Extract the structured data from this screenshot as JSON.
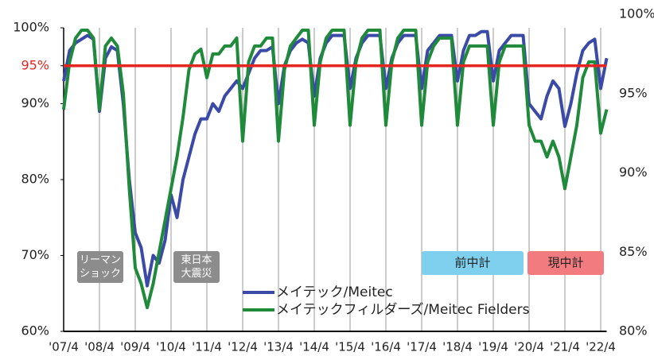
{
  "chart_data": {
    "type": "line",
    "categories": [
      "'07/4",
      null,
      null,
      null,
      null,
      null,
      "'08/4",
      null,
      null,
      null,
      null,
      null,
      "'09/4",
      null,
      null,
      null,
      null,
      null,
      "'10/4",
      null,
      null,
      null,
      null,
      null,
      "'11/4",
      null,
      null,
      null,
      null,
      null,
      "'12/4",
      null,
      null,
      null,
      null,
      null,
      "'13/4",
      null,
      null,
      null,
      null,
      null,
      "'14/4",
      null,
      null,
      null,
      null,
      null,
      "'15/4",
      null,
      null,
      null,
      null,
      null,
      "'16/4",
      null,
      null,
      null,
      null,
      null,
      "'17/4",
      null,
      null,
      null,
      null,
      null,
      "'18/4",
      null,
      null,
      null,
      null,
      null,
      "'19/4",
      null,
      null,
      null,
      null,
      null,
      "'20/4",
      null,
      null,
      null,
      null,
      null,
      "'21/4",
      null,
      null,
      null,
      null,
      null,
      "'22/4",
      null
    ],
    "series": [
      {
        "name": "メイテック/Meitec",
        "color": "#3a4aa6",
        "axis": "y",
        "values": [
          93,
          97,
          98,
          98.5,
          99,
          98.5,
          89,
          96,
          97.5,
          97,
          90,
          80,
          73,
          71,
          66,
          70,
          69,
          72,
          78,
          75,
          80,
          83,
          86,
          88,
          88,
          90,
          89,
          91,
          92,
          93,
          92,
          94,
          96,
          97,
          97,
          97.5,
          90,
          95,
          97,
          98,
          98.5,
          98,
          91,
          96,
          98,
          99,
          99,
          99,
          92,
          96,
          98,
          99,
          99,
          99,
          92,
          96,
          98,
          99,
          99,
          99,
          92,
          97,
          98,
          99,
          99,
          99,
          93,
          97,
          99,
          99,
          99.5,
          99.5,
          93,
          97,
          98,
          99,
          99,
          99,
          90,
          89,
          88,
          91,
          93,
          92,
          87,
          90,
          94,
          97,
          98,
          98.5,
          92,
          96
        ]
      },
      {
        "name": "メイテックフィルダーズ/Meitec Fielders",
        "color": "#1e8a3a",
        "axis": "y2",
        "values": [
          94,
          97,
          98.5,
          99,
          99,
          98.5,
          94,
          98,
          98.5,
          98,
          95,
          89,
          84,
          83,
          81.5,
          83,
          85,
          87,
          89,
          91,
          93.5,
          96.5,
          97.5,
          97.8,
          96,
          97.5,
          97.5,
          98,
          98,
          98.5,
          92,
          97,
          98,
          98,
          98.5,
          98.5,
          92,
          96.5,
          98,
          98.5,
          99,
          99,
          93,
          97,
          98.5,
          99,
          99,
          99,
          93,
          97,
          98.5,
          99,
          99,
          99,
          93,
          97,
          98.5,
          99,
          99,
          99,
          93,
          97,
          98,
          98.5,
          98.5,
          98.5,
          93,
          97,
          98,
          98,
          98,
          98,
          93,
          97,
          98,
          98,
          98,
          98,
          93,
          92,
          92,
          91,
          92,
          91,
          89,
          91,
          93,
          96,
          97,
          97,
          92.5,
          94
        ]
      }
    ],
    "ylim": [
      60,
      100
    ],
    "yticks": [
      {
        "value": 60,
        "label": "60%"
      },
      {
        "value": 70,
        "label": "70%"
      },
      {
        "value": 80,
        "label": "80%"
      },
      {
        "value": 90,
        "label": "90%"
      },
      {
        "value": 95,
        "label": "95%",
        "color": "#e52521"
      },
      {
        "value": 100,
        "label": "100%"
      }
    ],
    "y2lim": [
      80,
      100
    ],
    "y2ticks": [
      {
        "value": 80,
        "label": "80%"
      },
      {
        "value": 85,
        "label": "85%"
      },
      {
        "value": 90,
        "label": "90%"
      },
      {
        "value": 95,
        "label": "95%"
      },
      {
        "value": 100,
        "label": "100%"
      }
    ],
    "annotations": [
      {
        "text": [
          "リーマン",
          "ショック"
        ],
        "color": "#8c8c8c"
      },
      {
        "text": [
          "東日本",
          "大震災"
        ],
        "color": "#8c8c8c"
      },
      {
        "text": [
          "前中計"
        ],
        "color": "#7fd0ee"
      },
      {
        "text": [
          "現中計"
        ],
        "color": "#f27b7f"
      }
    ]
  }
}
